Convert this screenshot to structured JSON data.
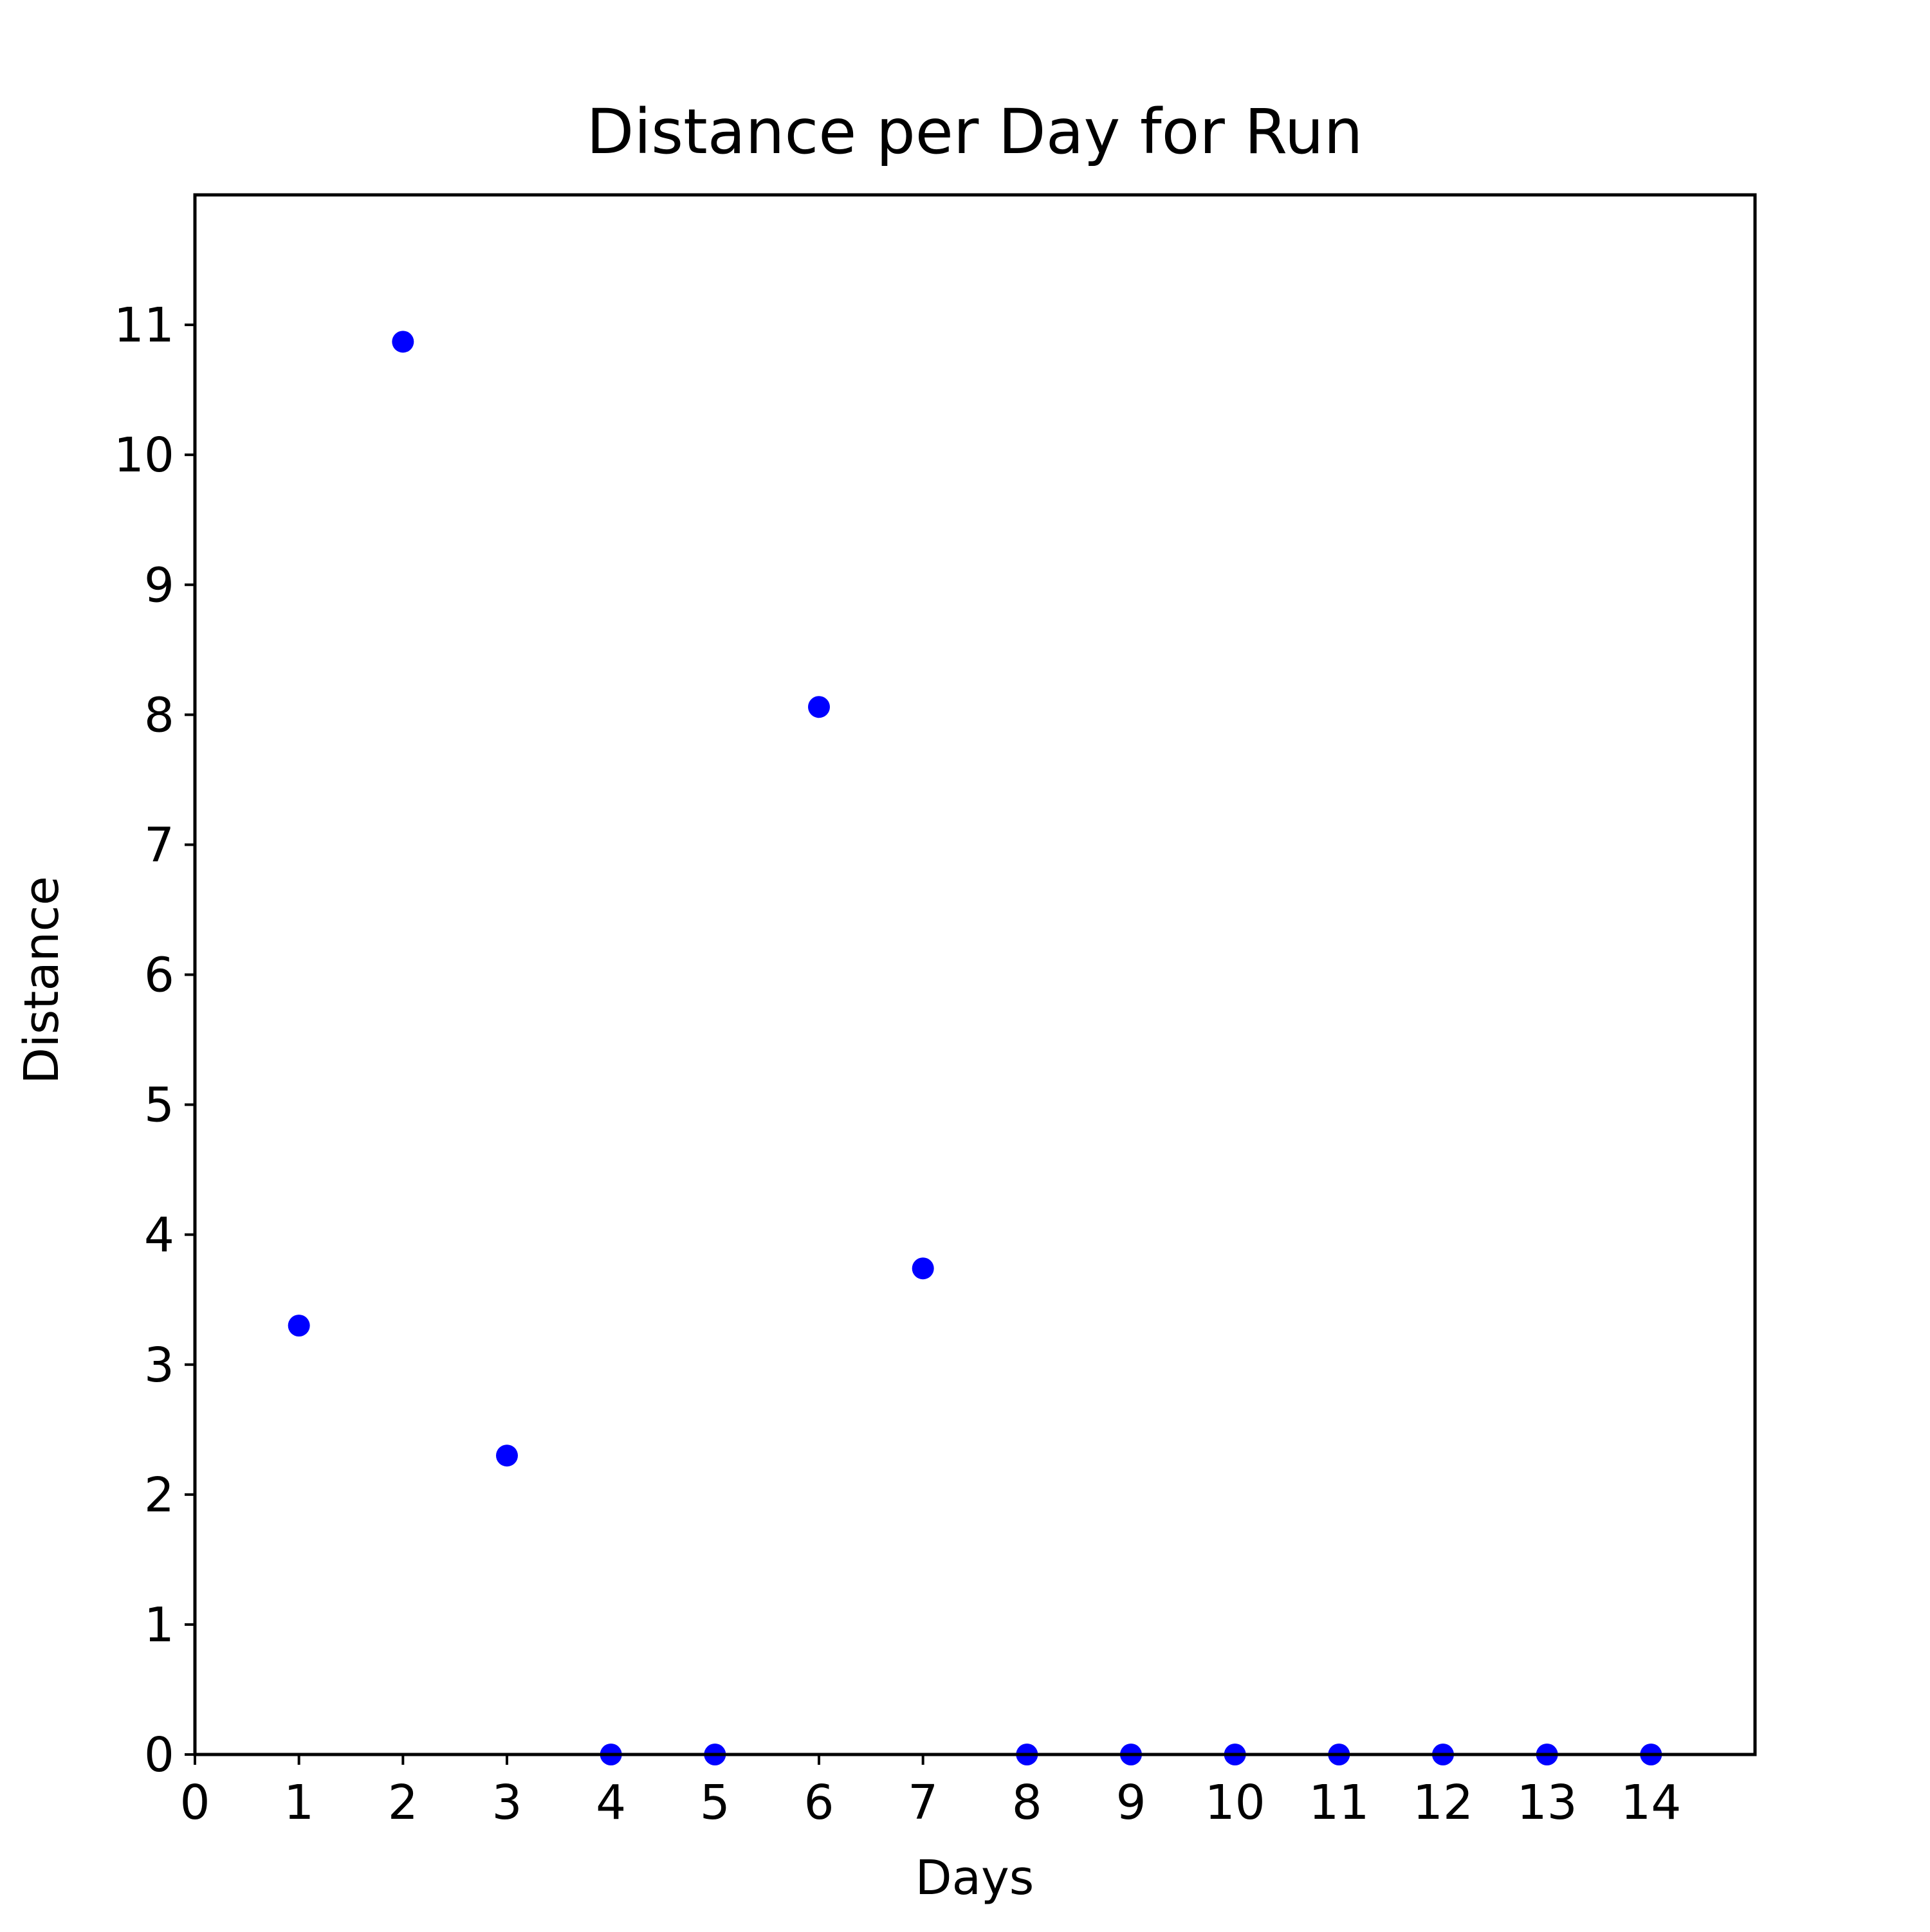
{
  "chart_data": {
    "type": "scatter",
    "title": "Distance per Day for Run",
    "xlabel": "Days",
    "ylabel": "Distance",
    "x": [
      1,
      2,
      3,
      4,
      5,
      6,
      7,
      8,
      9,
      10,
      11,
      12,
      13,
      14
    ],
    "y": [
      3.3,
      10.87,
      2.3,
      0,
      0,
      8.06,
      3.74,
      0,
      0,
      0,
      0,
      0,
      0,
      0
    ],
    "xlim": [
      0,
      15
    ],
    "ylim": [
      0,
      12
    ],
    "xticks": [
      "0",
      "1",
      "2",
      "3",
      "4",
      "5",
      "6",
      "7",
      "8",
      "9",
      "10",
      "11",
      "12",
      "13",
      "14"
    ],
    "yticks": [
      "0",
      "1",
      "2",
      "3",
      "4",
      "5",
      "6",
      "7",
      "8",
      "9",
      "10",
      "11"
    ],
    "grid": false,
    "marker_color": "#0000ff"
  }
}
